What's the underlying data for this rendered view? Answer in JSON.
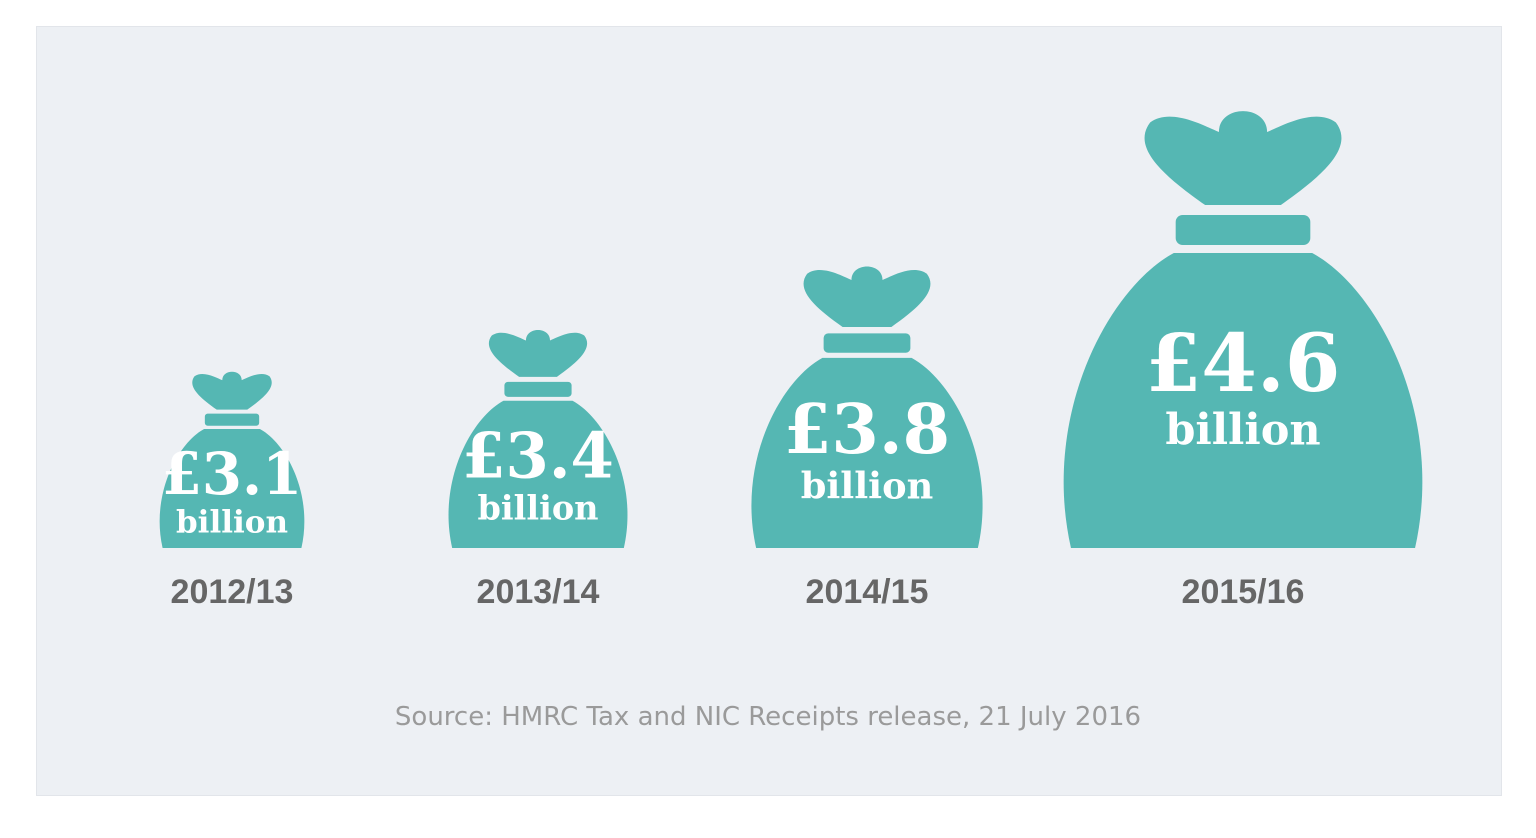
{
  "chart_data": {
    "type": "bar",
    "categories": [
      "2012/13",
      "2013/14",
      "2014/15",
      "2015/16"
    ],
    "values": [
      3.1,
      3.4,
      3.8,
      4.6
    ],
    "value_labels": [
      "£3.1",
      "£3.4",
      "£3.8",
      "£4.6"
    ],
    "unit_label": "billion",
    "mark": "money-bag-icon",
    "source": "Source: HMRC Tax and NIC Receipts release, 21 July 2016"
  },
  "colors": {
    "bag": "#55b7b3",
    "panel": "#edf0f4",
    "year_text": "#666666",
    "source_text": "#9a9a9a"
  }
}
